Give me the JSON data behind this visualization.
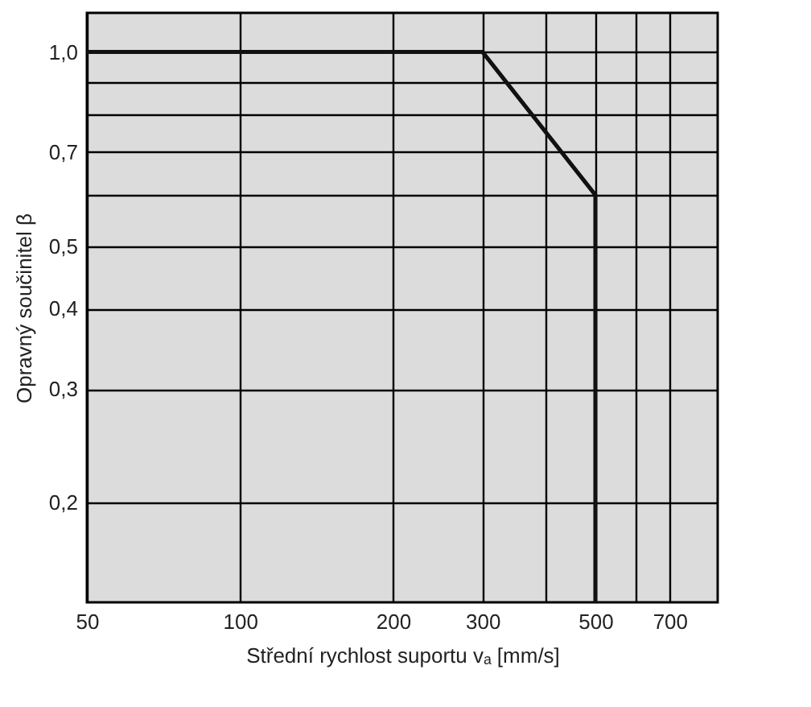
{
  "chart_data": {
    "type": "line",
    "xlabel": "Střední rychlost suportu vₐ [mm/s]",
    "ylabel": "Opravný součinitel β",
    "x": [
      50,
      300,
      500,
      500
    ],
    "series": [
      {
        "color": "#111111",
        "values": [
          1.0,
          1.0,
          0.6,
          0.14
        ]
      }
    ],
    "log": "xy",
    "grid": true,
    "marker": "none",
    "line_style": "solid",
    "xlim": [
      50,
      870
    ],
    "xticks": [
      50,
      100,
      200,
      300,
      {
        "value": 400,
        "label": null
      },
      500,
      {
        "value": 600,
        "label": null
      },
      700
    ],
    "ylim": [
      0.14,
      1.15
    ],
    "yticks": [
      {
        "value": 0.2,
        "label": "0,2"
      },
      {
        "value": 0.3,
        "label": "0,3"
      },
      {
        "value": 0.4,
        "label": "0,4"
      },
      {
        "value": 0.5,
        "label": "0,5"
      },
      {
        "value": 0.6,
        "label": null
      },
      {
        "value": 0.7,
        "label": "0,7"
      },
      {
        "value": 0.8,
        "label": null
      },
      {
        "value": 0.9,
        "label": null
      },
      {
        "value": 1.0,
        "label": "1,0"
      }
    ]
  }
}
